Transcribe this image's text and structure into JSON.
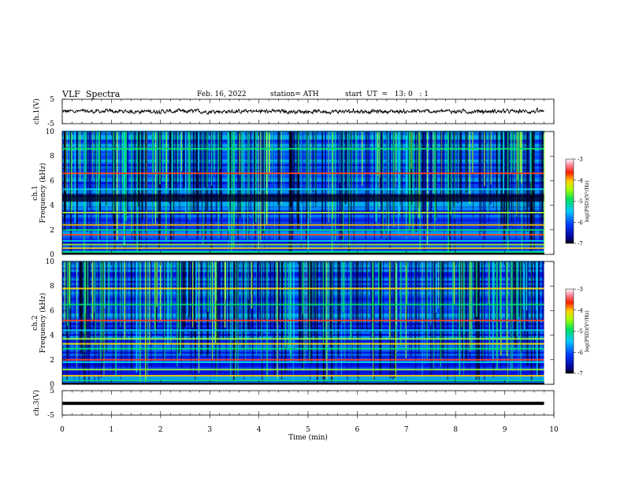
{
  "header": {
    "title": "VLF  Spectra",
    "date": "Feb. 16, 2022",
    "station": "station= ATH",
    "start": "start  UT  =   13: 0   : 1"
  },
  "chart_data": [
    {
      "id": "ch1_waveform",
      "type": "line",
      "ylabel": "ch.1(V)",
      "ylim": [
        -5,
        5
      ],
      "ytick_labels": [
        "5",
        "-5"
      ],
      "xlim": [
        0,
        10
      ],
      "series": [
        {
          "baseline": 0,
          "amplitude_approx": 1.2,
          "t_end_min": 9.8
        }
      ]
    },
    {
      "id": "ch1_spectrogram",
      "type": "heatmap",
      "ylabel_lines": [
        "ch.1",
        "Frequency  (kHz)"
      ],
      "ylim": [
        0,
        10
      ],
      "ytick_labels": [
        "0",
        "2",
        "4",
        "6",
        "8",
        "10"
      ],
      "xlim": [
        0,
        10
      ],
      "t_end_min": 9.8,
      "colorbar": {
        "label": "log(PSD)(V²/Hz)",
        "range": [
          -7,
          -3
        ],
        "tick_labels": [
          "-3",
          "-4",
          "-5",
          "-6",
          "-7"
        ]
      },
      "dominant_bands_khz": [
        0.2,
        0.5,
        0.8,
        1.1,
        1.6,
        2.0,
        2.4,
        3.4,
        5.3,
        6.6,
        8.6
      ],
      "quiet_bands_khz": [
        [
          4.3,
          4.9
        ]
      ]
    },
    {
      "id": "ch2_spectrogram",
      "type": "heatmap",
      "ylabel_lines": [
        "ch.2",
        "Frequency  (kHz)"
      ],
      "ylim": [
        0,
        10
      ],
      "ytick_labels": [
        "0",
        "2",
        "4",
        "6",
        "8",
        "10"
      ],
      "xlim": [
        0,
        10
      ],
      "t_end_min": 9.8,
      "colorbar": {
        "label": "log(PSD)(V²/Hz)",
        "range": [
          -7,
          -3
        ],
        "tick_labels": [
          "-3",
          "-4",
          "-5",
          "-6",
          "-7"
        ]
      },
      "dominant_bands_khz": [
        0.3,
        0.7,
        1.2,
        1.8,
        2.0,
        2.9,
        3.3,
        3.7,
        4.4,
        5.2,
        6.5,
        7.8
      ],
      "quiet_bands_khz": []
    },
    {
      "id": "ch3_waveform",
      "type": "line",
      "ylabel": "ch.3(V)",
      "ylim": [
        -5,
        5
      ],
      "ytick_labels": [
        "5",
        "-5"
      ],
      "xlim": [
        0,
        10
      ],
      "xlabel": "Time  (min)",
      "xtick_labels": [
        "0",
        "1",
        "2",
        "3",
        "4",
        "5",
        "6",
        "7",
        "8",
        "9",
        "10"
      ],
      "series": [
        {
          "value": -0.2,
          "t_end_min": 9.8
        }
      ]
    }
  ]
}
